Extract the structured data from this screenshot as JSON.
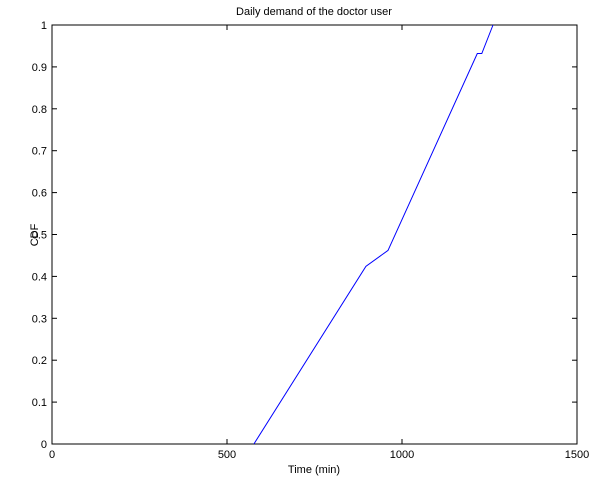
{
  "chart_data": {
    "type": "line",
    "title": "Daily demand of the doctor user",
    "xlabel": "Time (min)",
    "ylabel": "CDF",
    "xlim": [
      0,
      1500
    ],
    "ylim": [
      0,
      1
    ],
    "x_ticks": [
      0,
      500,
      1000,
      1500
    ],
    "x_tick_labels": [
      "0",
      "500",
      "1000",
      "1500"
    ],
    "y_ticks": [
      0,
      0.1,
      0.2,
      0.3,
      0.4,
      0.5,
      0.6,
      0.7,
      0.8,
      0.9,
      1
    ],
    "y_tick_labels": [
      "0",
      "0.1",
      "0.2",
      "0.3",
      "0.4",
      "0.5",
      "0.6",
      "0.7",
      "0.8",
      "0.9",
      "1"
    ],
    "grid": false,
    "series": [
      {
        "color": "#0000ff",
        "x": [
          577,
          897,
          960,
          1215,
          1228,
          1260
        ],
        "y": [
          0,
          0.424,
          0.462,
          0.932,
          0.932,
          1.0
        ]
      }
    ]
  }
}
